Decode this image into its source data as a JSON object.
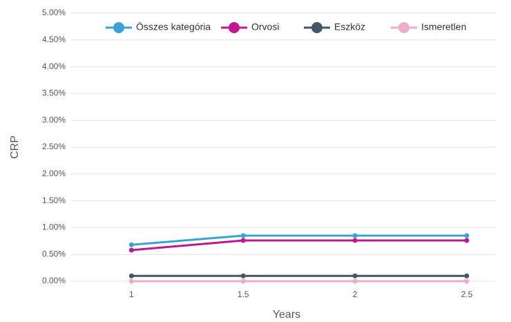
{
  "chart_data": {
    "type": "line",
    "x_label": "Years",
    "y_label": "CRP",
    "x": [
      1,
      1.5,
      2,
      2.5
    ],
    "series": [
      {
        "name": "Összes kategória",
        "color": "#39a3d4",
        "values": [
          0.68,
          0.85,
          0.85,
          0.85
        ]
      },
      {
        "name": "Orvosi",
        "color": "#c2168c",
        "values": [
          0.58,
          0.76,
          0.76,
          0.76
        ]
      },
      {
        "name": "Eszköz",
        "color": "#435766",
        "values": [
          0.1,
          0.1,
          0.1,
          0.1
        ]
      },
      {
        "name": "Ismeretlen",
        "color": "#eeaec9",
        "values": [
          0,
          0,
          0,
          0
        ]
      }
    ],
    "xlim": [
      0.73,
      2.63
    ],
    "xticks": [
      1,
      1.5,
      2,
      2.5
    ],
    "ylim": [
      0,
      5
    ],
    "yticks": [
      {
        "value": 0,
        "label": "0.00%"
      },
      {
        "value": 0.5,
        "label": "0.50%"
      },
      {
        "value": 1,
        "label": "1.00%"
      },
      {
        "value": 1.5,
        "label": "1.50%"
      },
      {
        "value": 2,
        "label": "2.00%"
      },
      {
        "value": 2.5,
        "label": "2.50%"
      },
      {
        "value": 3,
        "label": "3.00%"
      },
      {
        "value": 3.5,
        "label": "3.50%"
      },
      {
        "value": 4,
        "label": "4.00%"
      },
      {
        "value": 4.5,
        "label": "4.50%"
      },
      {
        "value": 5,
        "label": "5.00%"
      }
    ],
    "grid": true,
    "legend": "top"
  }
}
